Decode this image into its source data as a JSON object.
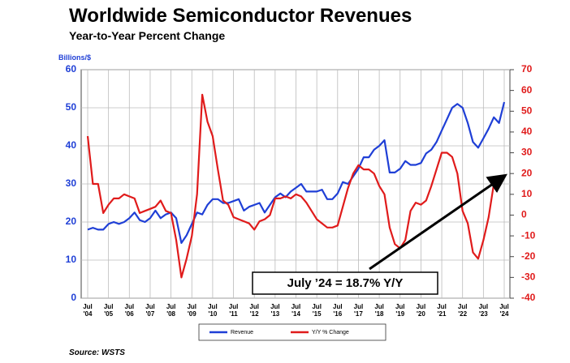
{
  "chart_data": {
    "type": "line",
    "title": "Worldwide Semiconductor Revenues",
    "subtitle": "Year-to-Year Percent Change",
    "y_label": "Billions/$",
    "annotation": "July ’24 = 18.7% Y/Y",
    "source": "Source: WSTS",
    "categories": [
      "Jul\n'04",
      null,
      null,
      null,
      "Jul\n'05",
      null,
      null,
      null,
      "Jul\n'06",
      null,
      null,
      null,
      "Jul\n'07",
      null,
      null,
      null,
      "Jul\n'08",
      null,
      null,
      null,
      "Jul\n'09",
      null,
      null,
      null,
      "Jul\n'10",
      null,
      null,
      null,
      "Jul\n'11",
      null,
      null,
      null,
      "Jul\n'12",
      null,
      null,
      null,
      "Jul\n'13",
      null,
      null,
      null,
      "Jul\n'14",
      null,
      null,
      null,
      "Jul\n'15",
      null,
      null,
      null,
      "Jul\n'16",
      null,
      null,
      null,
      "Jul\n'17",
      null,
      null,
      null,
      "Jul\n'18",
      null,
      null,
      null,
      "Jul\n'19",
      null,
      null,
      null,
      "Jul\n'20",
      null,
      null,
      null,
      "Jul\n'21",
      null,
      null,
      null,
      "Jul\n'22",
      null,
      null,
      null,
      "Jul\n'23",
      null,
      null,
      null,
      "Jul\n'24"
    ],
    "series": [
      {
        "name": "Revenue",
        "color": "#1f3fd6",
        "values": [
          18,
          18.5,
          18,
          18,
          19.5,
          20,
          19.5,
          20,
          21,
          22.5,
          20.5,
          20,
          21,
          23,
          21,
          22,
          22.5,
          21,
          14.5,
          16.5,
          19.5,
          22.5,
          22,
          24.5,
          26,
          26,
          25,
          25,
          25.5,
          26,
          23,
          24,
          24.5,
          25,
          22.5,
          24.5,
          26.5,
          27.5,
          26.5,
          28,
          29,
          30,
          28,
          28,
          28,
          28.5,
          26,
          26,
          27.5,
          30.5,
          30,
          32,
          34,
          37,
          37,
          39,
          40,
          41.5,
          33,
          33,
          34,
          36,
          35,
          35,
          35.5,
          38,
          39,
          41,
          44,
          47,
          50,
          51,
          50,
          46,
          41,
          39.5,
          42,
          44.5,
          47.5,
          46,
          51.5
        ]
      },
      {
        "name": "Y/Y % Change",
        "color": "#e01b1b",
        "axis": "y2",
        "values": [
          38,
          15,
          15,
          1,
          5,
          8,
          8,
          10,
          9,
          8,
          1,
          2,
          3,
          4,
          7,
          2,
          1,
          -12,
          -30,
          -21,
          -10,
          10,
          58,
          45,
          38,
          22,
          7,
          5,
          -1,
          -2,
          -3,
          -4,
          -7,
          -3,
          -2,
          0,
          8,
          8,
          9,
          8,
          10,
          9,
          6,
          2,
          -2,
          -4,
          -6,
          -6,
          -5,
          4,
          13,
          20,
          24,
          22,
          22,
          20,
          14,
          10,
          -6,
          -14,
          -16,
          -12,
          2,
          6,
          5,
          7,
          14,
          22,
          30,
          30,
          28,
          20,
          2,
          -4,
          -18,
          -21,
          -12,
          -1,
          15,
          15,
          18.7
        ]
      }
    ],
    "ylim": [
      0,
      60
    ],
    "yticks": [
      0,
      10,
      20,
      30,
      40,
      50,
      60
    ],
    "y2lim": [
      -40,
      70
    ],
    "y2ticks": [
      -40,
      -30,
      -20,
      -10,
      0,
      10,
      20,
      30,
      40,
      50,
      60,
      70
    ],
    "grid": true
  }
}
